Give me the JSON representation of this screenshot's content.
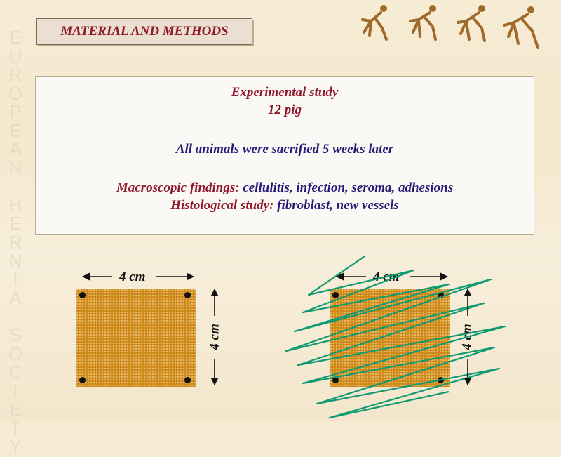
{
  "watermark": "EUROPEAN HERNIA SOCIETY",
  "header": {
    "title": "MATERIAL AND METHODS"
  },
  "content": {
    "study_type": "Experimental study",
    "subjects": "12 pig",
    "sacrifice_note": "All animals were sacrified 5 weeks later",
    "macroscopic_label": "Macroscopic findings:",
    "macroscopic_values": " cellulitis, infection, seroma, adhesions",
    "histological_label": "Histological study:",
    "histological_values": " fibroblast, new vessels"
  },
  "diagram_left": {
    "width_label": "4 cm",
    "height_label": "4 cm"
  },
  "diagram_right": {
    "width_label": "4 cm",
    "height_label": "4 cm"
  },
  "colors": {
    "maroon": "#8f1a2c",
    "navy": "#2a1a78",
    "mesh": "#cf8a1c",
    "suture_green": "#0f9a72"
  }
}
